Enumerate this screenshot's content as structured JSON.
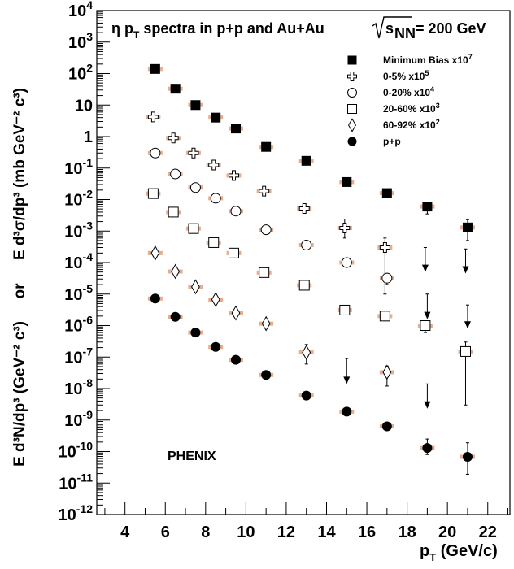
{
  "chart_data": {
    "type": "scatter",
    "title": "η p_T spectra in p+p and Au+Au √s_NN = 200 GeV",
    "title_parts": {
      "main": "η p",
      "sub": "T",
      "rest": " spectra in p+p and Au+Au ",
      "s": "s",
      "nn": "NN",
      "energy": " = 200 GeV"
    },
    "xlabel": {
      "main": "p",
      "sub": "T",
      "rest": " (GeV/c)"
    },
    "xlim": [
      2.6,
      23.1
    ],
    "ylim_log10": [
      -12,
      4
    ],
    "y_log": true,
    "x_ticks": [
      "4",
      "6",
      "8",
      "10",
      "12",
      "14",
      "16",
      "18",
      "20",
      "22"
    ],
    "x_tick_values": [
      4,
      6,
      8,
      10,
      12,
      14,
      16,
      18,
      20,
      22
    ],
    "y_ticks": [
      {
        "b": "10",
        "e": "4",
        "v": 4
      },
      {
        "b": "10",
        "e": "3",
        "v": 3
      },
      {
        "b": "10",
        "e": "2",
        "v": 2
      },
      {
        "b": "10",
        "e": "",
        "v": 1
      },
      {
        "b": "1",
        "e": "",
        "v": 0
      },
      {
        "b": "10",
        "e": "-1",
        "v": -1
      },
      {
        "b": "10",
        "e": "-2",
        "v": -2
      },
      {
        "b": "10",
        "e": "-3",
        "v": -3
      },
      {
        "b": "10",
        "e": "-4",
        "v": -4
      },
      {
        "b": "10",
        "e": "-5",
        "v": -5
      },
      {
        "b": "10",
        "e": "-6",
        "v": -6
      },
      {
        "b": "10",
        "e": "-7",
        "v": -7
      },
      {
        "b": "10",
        "e": "-8",
        "v": -8
      },
      {
        "b": "10",
        "e": "-9",
        "v": -9
      },
      {
        "b": "10",
        "e": "-10",
        "v": -10
      },
      {
        "b": "10",
        "e": "-11",
        "v": -11
      },
      {
        "b": "10",
        "e": "-12",
        "v": -12
      }
    ],
    "ylabel": {
      "top": "E d³σ/dp³ (mb GeV⁻² c³)",
      "middle": "or",
      "bottom": "E d³N/dp³ (GeV⁻² c³)"
    },
    "annotation": "PHENIX",
    "legend_position": "top-right",
    "series": [
      {
        "name": "Minimum Bias x10^7",
        "label_main": "Minimum Bias x10",
        "label_exp": "7",
        "marker": "filled-square",
        "points": [
          {
            "x": 5.5,
            "y": 140.0
          },
          {
            "x": 6.5,
            "y": 33.0
          },
          {
            "x": 7.5,
            "y": 10.0
          },
          {
            "x": 8.5,
            "y": 4.0
          },
          {
            "x": 9.5,
            "y": 1.8
          },
          {
            "x": 11.0,
            "y": 0.47
          },
          {
            "x": 13.0,
            "y": 0.17
          },
          {
            "x": 15.0,
            "y": 0.036
          },
          {
            "x": 17.0,
            "y": 0.016
          },
          {
            "x": 19.0,
            "y": 0.006,
            "err": [
              0.0035,
              0.008
            ]
          },
          {
            "x": 21.0,
            "y": 0.0013,
            "err": [
              0.0005,
              0.0023
            ]
          }
        ]
      },
      {
        "name": "0-5% x10^5",
        "label_main": "0-5% x10",
        "label_exp": "5",
        "marker": "open-cross",
        "points": [
          {
            "x": 5.4,
            "y": 4.2
          },
          {
            "x": 6.4,
            "y": 0.9
          },
          {
            "x": 7.4,
            "y": 0.3
          },
          {
            "x": 8.4,
            "y": 0.125
          },
          {
            "x": 9.4,
            "y": 0.058
          },
          {
            "x": 10.9,
            "y": 0.0185
          },
          {
            "x": 12.9,
            "y": 0.0052
          },
          {
            "x": 14.9,
            "y": 0.00125,
            "err": [
              0.0006,
              0.0024
            ]
          },
          {
            "x": 16.9,
            "y": 0.0003,
            "err": [
              1e-05,
              0.0006
            ]
          }
        ],
        "upper_limits": [
          {
            "x": 18.9,
            "y": 0.0003,
            "to": 5e-05
          },
          {
            "x": 20.9,
            "y": 0.00027,
            "to": 4.5e-05
          }
        ]
      },
      {
        "name": "0-20% x10^4",
        "label_main": "0-20% x10",
        "label_exp": "4",
        "marker": "open-circle",
        "points": [
          {
            "x": 5.5,
            "y": 0.3
          },
          {
            "x": 6.5,
            "y": 0.065
          },
          {
            "x": 7.5,
            "y": 0.024
          },
          {
            "x": 8.5,
            "y": 0.011
          },
          {
            "x": 9.5,
            "y": 0.0043
          },
          {
            "x": 11.0,
            "y": 0.0011
          },
          {
            "x": 13.0,
            "y": 0.00036
          },
          {
            "x": 15.0,
            "y": 0.0001
          },
          {
            "x": 17.0,
            "y": 3.2e-05,
            "err": [
              2e-05,
              4.5e-05
            ]
          }
        ],
        "upper_limits": [
          {
            "x": 19.0,
            "y": 1e-05,
            "to": 1.6e-06
          },
          {
            "x": 21.0,
            "y": 4.5e-06,
            "to": 8e-07
          }
        ]
      },
      {
        "name": "20-60% x10^3",
        "label_main": "20-60% x10",
        "label_exp": "3",
        "marker": "open-square",
        "points": [
          {
            "x": 5.4,
            "y": 0.0155
          },
          {
            "x": 6.4,
            "y": 0.004
          },
          {
            "x": 7.4,
            "y": 0.0012
          },
          {
            "x": 8.4,
            "y": 0.00043
          },
          {
            "x": 9.4,
            "y": 0.0002
          },
          {
            "x": 10.9,
            "y": 4.8e-05
          },
          {
            "x": 12.9,
            "y": 1.9e-05
          },
          {
            "x": 14.9,
            "y": 3.1e-06,
            "err": [
              2.2e-06,
              3.8e-06
            ]
          },
          {
            "x": 16.9,
            "y": 2e-06,
            "err": [
              1.5e-06,
              2.4e-06
            ]
          },
          {
            "x": 18.9,
            "y": 1e-06,
            "err": [
              6e-07,
              1.4e-06
            ]
          },
          {
            "x": 20.9,
            "y": 1.5e-07,
            "err": [
              3e-09,
              3e-07
            ]
          }
        ]
      },
      {
        "name": "60-92% x10^2",
        "label_main": "60-92% x10",
        "label_exp": "2",
        "marker": "open-diamond",
        "points": [
          {
            "x": 5.5,
            "y": 0.0002
          },
          {
            "x": 6.5,
            "y": 5.2e-05
          },
          {
            "x": 7.5,
            "y": 1.7e-05
          },
          {
            "x": 8.5,
            "y": 6.7e-06
          },
          {
            "x": 9.5,
            "y": 2.5e-06
          },
          {
            "x": 11.0,
            "y": 1.15e-06
          },
          {
            "x": 13.0,
            "y": 1.4e-07,
            "err": [
              6e-08,
              2.5e-07
            ]
          },
          {
            "x": 17.0,
            "y": 3.3e-08,
            "err": [
              1.2e-08,
              5.2e-08
            ]
          }
        ],
        "upper_limits": [
          {
            "x": 15.0,
            "y": 9e-08,
            "to": 1.4e-08
          },
          {
            "x": 19.0,
            "y": 1.4e-08,
            "to": 2.3e-09
          }
        ]
      },
      {
        "name": "p+p",
        "label_main": "p+p",
        "label_exp": "",
        "marker": "filled-circle",
        "points": [
          {
            "x": 5.5,
            "y": 7.2e-06
          },
          {
            "x": 6.5,
            "y": 1.9e-06
          },
          {
            "x": 7.5,
            "y": 6e-07
          },
          {
            "x": 8.5,
            "y": 2.1e-07
          },
          {
            "x": 9.5,
            "y": 8.2e-08
          },
          {
            "x": 11.0,
            "y": 2.7e-08
          },
          {
            "x": 13.0,
            "y": 6e-09
          },
          {
            "x": 15.0,
            "y": 1.85e-09
          },
          {
            "x": 17.0,
            "y": 6.3e-10
          },
          {
            "x": 19.0,
            "y": 1.3e-10,
            "err": [
              8e-11,
              2.5e-10
            ]
          },
          {
            "x": 21.0,
            "y": 6.8e-11,
            "err": [
              1.9e-11,
              1.9e-10
            ]
          }
        ]
      }
    ]
  }
}
